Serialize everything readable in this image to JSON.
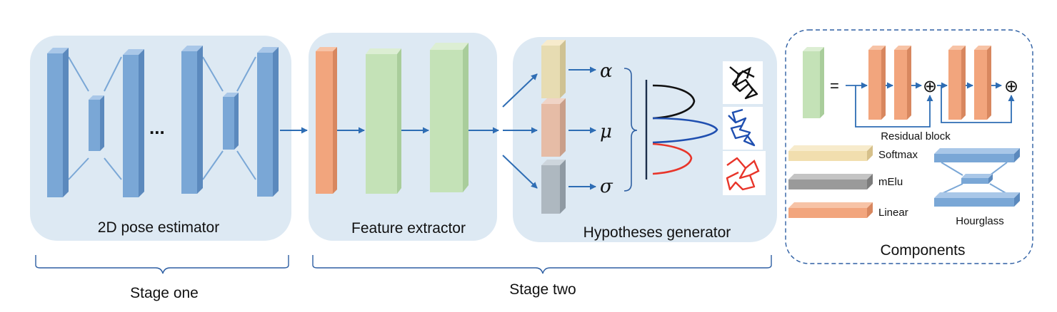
{
  "panels": {
    "pose_estimator": "2D pose estimator",
    "feature_extractor": "Feature extractor",
    "hypotheses_generator": "Hypotheses generator",
    "components": "Components"
  },
  "ellipsis": "...",
  "greek": {
    "alpha": "α",
    "mu": "μ",
    "sigma": "σ"
  },
  "equals": "=",
  "oplus": "⊕",
  "components": {
    "residual_block": "Residual block",
    "softmax": "Softmax",
    "melu": "mElu",
    "linear": "Linear",
    "hourglass": "Hourglass"
  },
  "stages": {
    "one": "Stage one",
    "two": "Stage two"
  },
  "colors": {
    "panel": "#dde9f3",
    "blue_block": "#7aa7d6",
    "orange": "#f2a57d",
    "green": "#c4e2b7",
    "softmax_yellow": "#f1deae",
    "mu_pink": "#e6bca6",
    "sigma_gray": "#aeb8c0",
    "melu_gray": "#9a9a9a",
    "arrow": "#2e6db4",
    "curve_black": "#111111",
    "curve_blue": "#1f4fb0",
    "curve_red": "#e8352a"
  },
  "icons": [
    "pose-skeleton-black-icon",
    "pose-skeleton-blue-icon",
    "pose-skeleton-red-icon"
  ]
}
